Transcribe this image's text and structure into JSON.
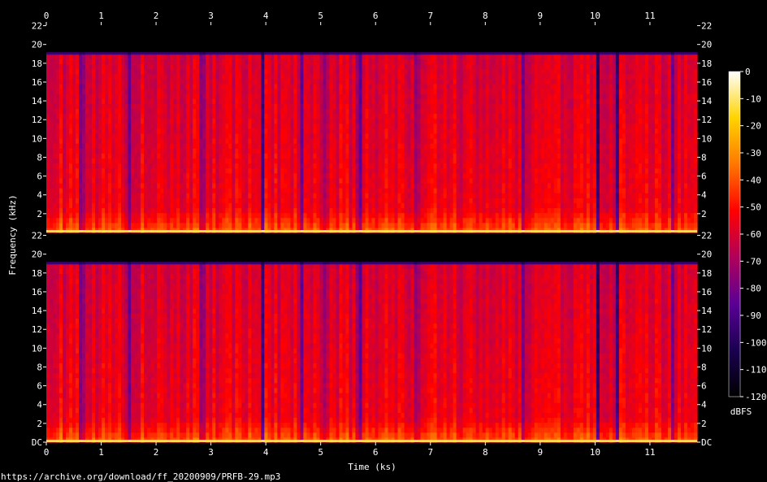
{
  "chart_data": {
    "type": "heatmap",
    "subtype": "spectrogram",
    "channels": 2,
    "x": {
      "label": "Time (ks)",
      "range": [
        0,
        11.86
      ],
      "ticks": [
        0,
        1,
        2,
        3,
        4,
        5,
        6,
        7,
        8,
        9,
        10,
        11
      ]
    },
    "y": {
      "label": "Frequency (kHz)",
      "range": [
        0,
        22.05
      ],
      "ticks_top": [
        "22",
        "20",
        "18",
        "16",
        "14",
        "12",
        "10",
        "8",
        "6",
        "4",
        "2"
      ],
      "ticks_bottom": [
        "22",
        "20",
        "18",
        "16",
        "14",
        "12",
        "10",
        "8",
        "6",
        "4",
        "2",
        "DC"
      ]
    },
    "colorbar": {
      "unit": "dBFS",
      "range": [
        -120,
        0
      ],
      "ticks": [
        "0",
        "-10",
        "-20",
        "-30",
        "-40",
        "-50",
        "-60",
        "-70",
        "-80",
        "-90",
        "-100",
        "-110",
        "-120"
      ],
      "colormap": [
        "#000000",
        "#1a0050",
        "#5a0096",
        "#b0005a",
        "#ff0000",
        "#ff7700",
        "#ffd400",
        "#ffffff"
      ]
    },
    "features": {
      "lowpass_cutoff_khz": 19.0,
      "dominant_level_dbfs": -55,
      "low_band_level_dbfs": -25,
      "dropout_times_ks": [
        0.65,
        1.5,
        2.85,
        3.95,
        4.65,
        5.1,
        5.7,
        6.75,
        8.7,
        10.05,
        10.4,
        11.4
      ]
    }
  },
  "footer": {
    "url": "https://archive.org/download/ff_20200909/PRFB-29.mp3"
  }
}
